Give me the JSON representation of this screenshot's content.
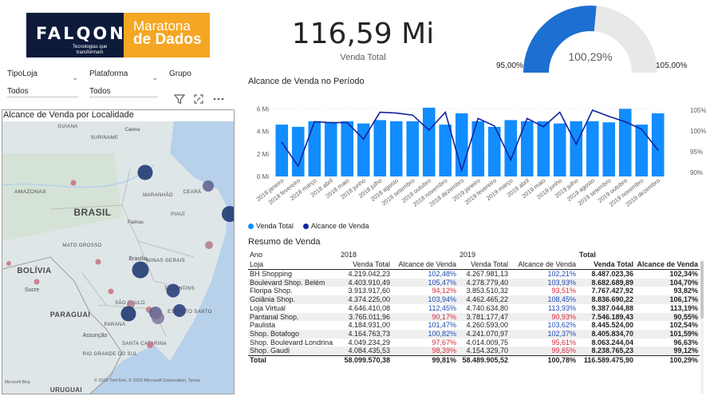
{
  "logo": {
    "brand": "FALQON",
    "tagline_1": "Tecnologias que",
    "tagline_2": "transformam",
    "event_line1": "Maratona",
    "event_line2": "de Dados"
  },
  "kpi": {
    "value": "116,59 Mi",
    "label": "Venda Total"
  },
  "gauge": {
    "center": "100,29%",
    "min": "95,00%",
    "max": "105,00%",
    "value_pct": 100.29,
    "range": [
      95,
      105
    ],
    "color": "#1d6fd1",
    "track": "#e8e8e8"
  },
  "slicers": [
    {
      "label": "TipoLoja",
      "value": "Todos"
    },
    {
      "label": "Plataforma",
      "value": "Todos"
    },
    {
      "label": "Grupo",
      "value": ""
    }
  ],
  "map": {
    "title": "Alcance de Venda por Localidade",
    "labels": [
      "GUIANA",
      "SURINAME",
      "Caiena",
      "AMAZONAS",
      "MARANHÃO",
      "CEARÁ",
      "BRASIL",
      "PIAUÍ",
      "Palmas",
      "MATO GROSSO",
      "Brasília",
      "MINAS GERAIS",
      "BOLÍVIA",
      "TOCANTINS",
      "Sucre",
      "SÃO PAULO",
      "ESPÍRITO SANTO",
      "PARAGUAI",
      "PARANÁ",
      "Assunção",
      "RIO GRANDE DO SUL",
      "SANTA CATARINA",
      "URUGUAI"
    ],
    "attribution": "© 2022 TomTom, © 2022 Microsoft Corporation, Terms",
    "bing": "Microsoft Bing",
    "icons": [
      "filter-icon",
      "expand-icon",
      "more-icon"
    ]
  },
  "combo_title": "Alcance de Venda no Período",
  "legend": {
    "bar": "Venda Total",
    "line": "Alcance de Venda"
  },
  "chart_data": {
    "type": "bar",
    "categories": [
      "2018 janeiro",
      "2018 fevereiro",
      "2018 março",
      "2018 abril",
      "2018 maio",
      "2018 junho",
      "2018 julho",
      "2018 agosto",
      "2018 setembro",
      "2018 outubro",
      "2018 novembro",
      "2018 dezembro",
      "2019 janeiro",
      "2019 fevereiro",
      "2019 março",
      "2019 abril",
      "2019 maio",
      "2019 junho",
      "2019 julho",
      "2019 agosto",
      "2019 setembro",
      "2019 outubro",
      "2019 novembro",
      "2019 dezembro"
    ],
    "series": [
      {
        "name": "Venda Total",
        "type": "bar",
        "axis": "left",
        "values": [
          4.6,
          4.4,
          4.9,
          4.8,
          4.9,
          4.7,
          5.0,
          4.9,
          4.9,
          6.1,
          4.6,
          5.6,
          4.9,
          4.4,
          5.0,
          4.9,
          4.9,
          4.7,
          4.9,
          4.9,
          4.8,
          6.0,
          4.6,
          5.6
        ]
      },
      {
        "name": "Alcance de Venda",
        "type": "line",
        "axis": "right",
        "values": [
          97.2,
          91.5,
          102.2,
          102.0,
          102.0,
          98.0,
          104.5,
          104.3,
          103.8,
          100.2,
          104.5,
          90.5,
          103.0,
          101.2,
          93.0,
          103.0,
          101.0,
          104.5,
          96.8,
          105.0,
          103.5,
          102.2,
          100.4,
          95.4
        ]
      }
    ],
    "y_left": {
      "ticks": [
        "0 Mi",
        "2 Mi",
        "4 Mi",
        "6 Mi"
      ],
      "range": [
        0,
        6.8
      ]
    },
    "y_right": {
      "ticks": [
        "90%",
        "95%",
        "100%",
        "105%"
      ],
      "range": [
        89,
        107.5
      ]
    },
    "colors": {
      "bar": "#118dff",
      "line": "#12239e"
    }
  },
  "table": {
    "title": "Resumo de Venda",
    "header1": [
      "Ano",
      "2018",
      "",
      "2019",
      "",
      "Total",
      ""
    ],
    "header2": [
      "Loja",
      "Venda Total",
      "Alcance de Venda",
      "Venda Total",
      "Alcance de Venda",
      "Venda Total",
      "Alcance de Venda"
    ],
    "rows": [
      [
        "BH Shopping",
        "4.219.042,23",
        "102,48%",
        "4.267.981,13",
        "102,21%",
        "8.487.023,36",
        "102,34%"
      ],
      [
        "Boulevard Shop. Belém",
        "4.403.910,49",
        "105,47%",
        "4.278.779,40",
        "103,93%",
        "8.682.689,89",
        "104,70%"
      ],
      [
        "Floripa Shop.",
        "3.913.917,60",
        "94,12%",
        "3.853.510,32",
        "93,51%",
        "7.767.427,92",
        "93,82%"
      ],
      [
        "Goiânia Shop.",
        "4.374.225,00",
        "103,94%",
        "4.462.465,22",
        "108,45%",
        "8.836.690,22",
        "106,17%"
      ],
      [
        "Loja Virtual",
        "4.646.410,08",
        "112,45%",
        "4.740.634,80",
        "113,93%",
        "9.387.044,88",
        "113,19%"
      ],
      [
        "Pantanal Shop.",
        "3.765.011,96",
        "90,17%",
        "3.781.177,47",
        "90,93%",
        "7.546.189,43",
        "90,55%"
      ],
      [
        "Paulista",
        "4.184.931,00",
        "101,47%",
        "4.260.593,00",
        "103,62%",
        "8.445.524,00",
        "102,54%"
      ],
      [
        "Shop. Botafogo",
        "4.164.763,73",
        "100,82%",
        "4.241.070,97",
        "102,37%",
        "8.405.834,70",
        "101,59%"
      ],
      [
        "Shop. Boulevard Londrina",
        "4.049.234,29",
        "97,67%",
        "4.014.009,75",
        "95,61%",
        "8.063.244,04",
        "96,63%"
      ],
      [
        "Shop. Gaudi",
        "4.084.435,53",
        "98,39%",
        "4.154.329,70",
        "99,65%",
        "8.238.765,23",
        "99,12%"
      ]
    ],
    "row_trend": [
      [
        "up",
        "up"
      ],
      [
        "up",
        "up"
      ],
      [
        "down",
        "down"
      ],
      [
        "up",
        "up"
      ],
      [
        "up",
        "up"
      ],
      [
        "down",
        "down"
      ],
      [
        "up",
        "up"
      ],
      [
        "up",
        "up"
      ],
      [
        "down",
        "down"
      ],
      [
        "down",
        "down"
      ]
    ],
    "total": [
      "Total",
      "58.099.570,38",
      "99,81%",
      "58.489.905,52",
      "100,78%",
      "116.589.475,90",
      "100,29%"
    ]
  }
}
